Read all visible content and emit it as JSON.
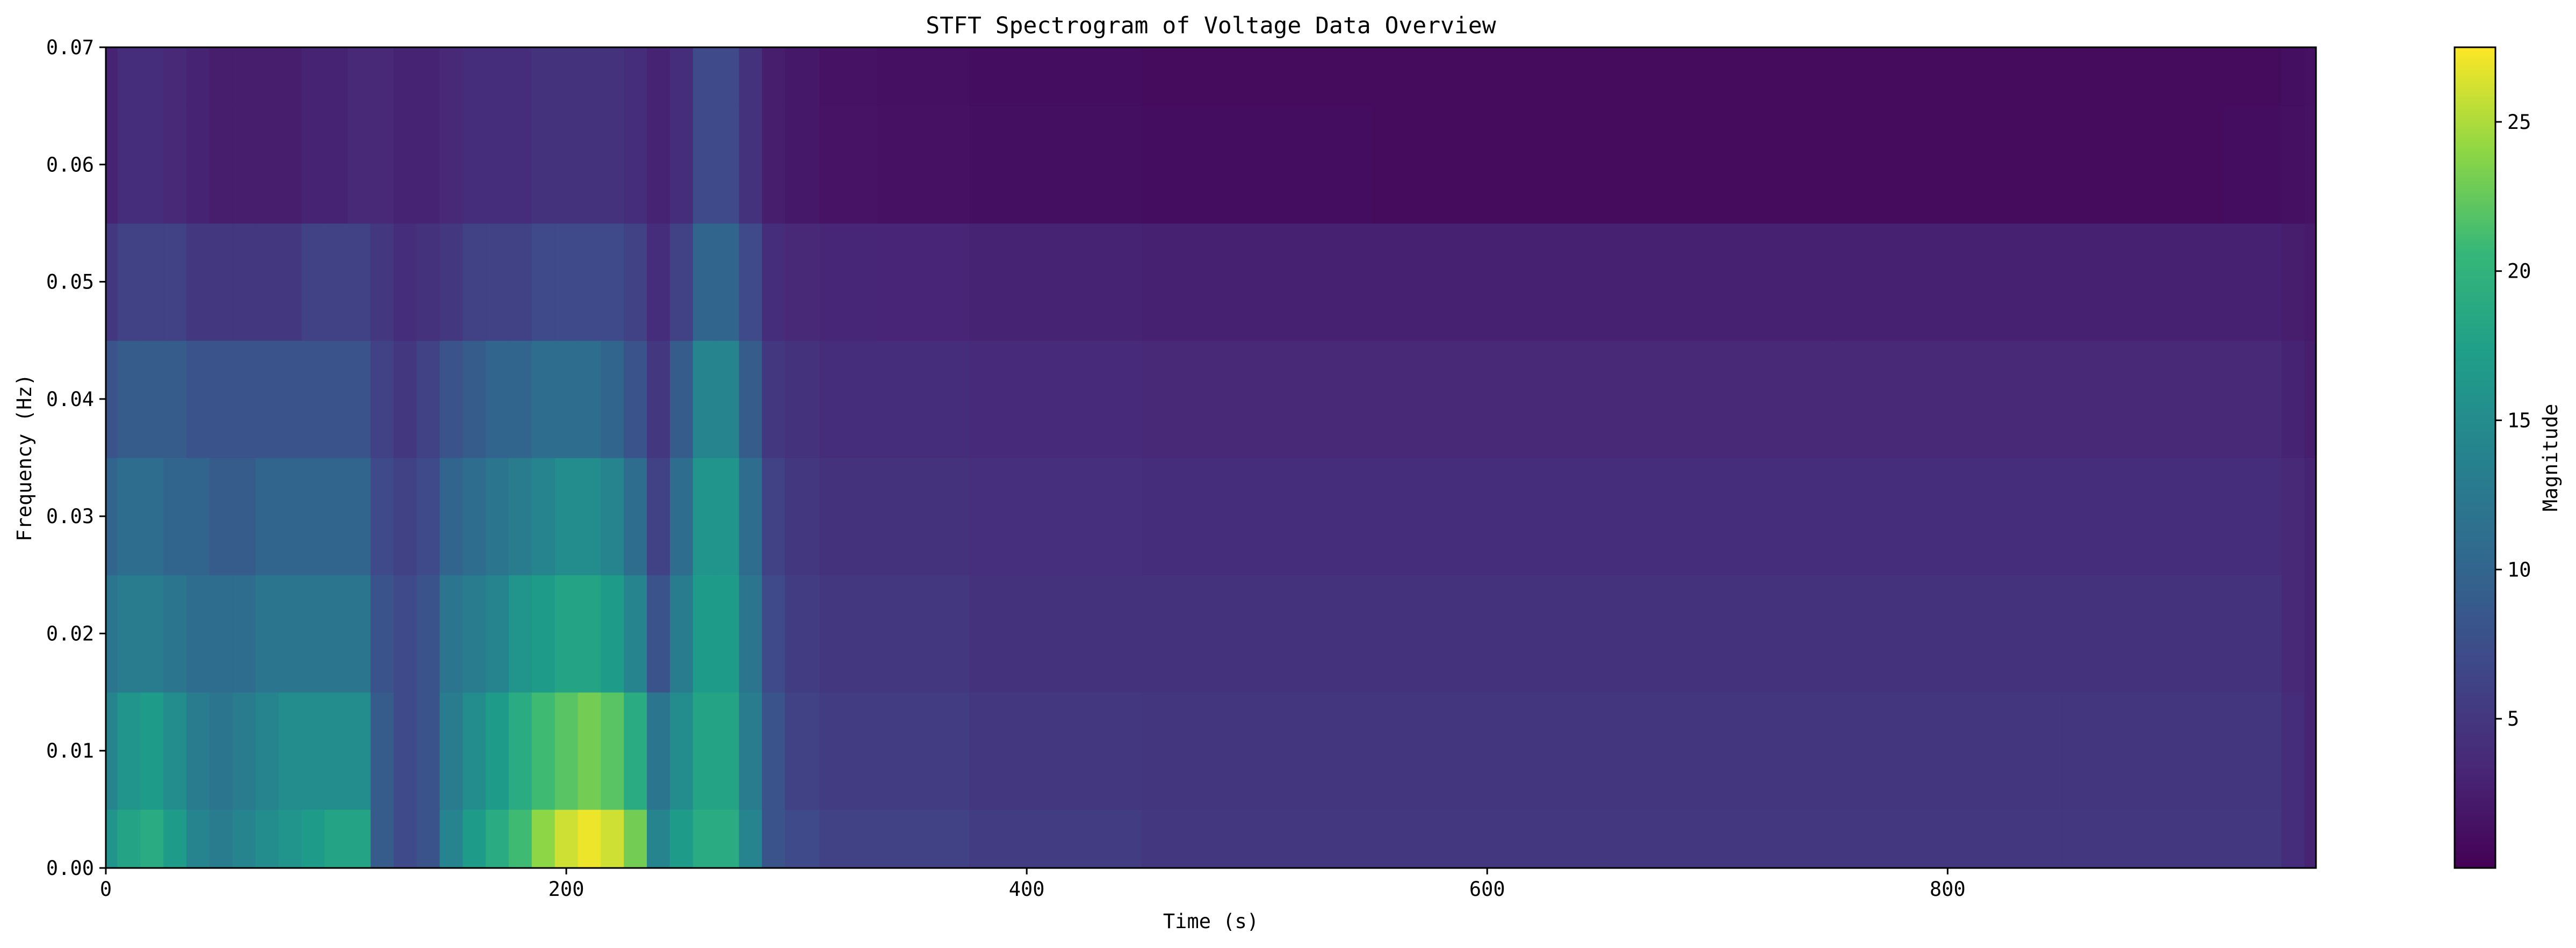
{
  "chart_data": {
    "type": "heatmap",
    "title": "STFT Spectrogram of Voltage Data Overview",
    "xlabel": "Time (s)",
    "ylabel": "Frequency (Hz)",
    "colorbar_label": "Magnitude",
    "colormap": "viridis",
    "xlim": [
      0,
      960
    ],
    "ylim": [
      0,
      0.07
    ],
    "clim": [
      0,
      27.5
    ],
    "x_ticks": [
      0,
      200,
      400,
      600,
      800
    ],
    "x_tick_labels": [
      "0",
      "200",
      "400",
      "600",
      "800"
    ],
    "y_ticks": [
      0.0,
      0.01,
      0.02,
      0.03,
      0.04,
      0.05,
      0.06,
      0.07
    ],
    "y_tick_labels": [
      "0.00",
      "0.01",
      "0.02",
      "0.03",
      "0.04",
      "0.05",
      "0.06",
      "0.07"
    ],
    "colorbar_ticks": [
      5,
      10,
      15,
      20,
      25
    ],
    "colorbar_tick_labels": [
      "5",
      "10",
      "15",
      "20",
      "25"
    ],
    "time_bins": [
      0,
      10,
      20,
      30,
      40,
      50,
      60,
      70,
      80,
      90,
      100,
      110,
      120,
      130,
      140,
      150,
      160,
      170,
      180,
      190,
      200,
      210,
      220,
      230,
      240,
      250,
      260,
      270,
      280,
      290,
      300,
      320,
      350,
      400,
      500,
      600,
      700,
      800,
      900,
      940,
      950,
      960
    ],
    "frequency_bins": [
      0.0,
      0.01,
      0.02,
      0.03,
      0.04,
      0.05,
      0.06,
      0.07
    ],
    "magnitude": [
      [
        16,
        18,
        19,
        17,
        14,
        13,
        14,
        15,
        16,
        17,
        18,
        18,
        9,
        7,
        8,
        14,
        17,
        19,
        21,
        24,
        26,
        27,
        26,
        23,
        14,
        17,
        19,
        19,
        14,
        8,
        7,
        6,
        6,
        5.5,
        5,
        5,
        5,
        5,
        5,
        5,
        4,
        3
      ],
      [
        14,
        16,
        17,
        15,
        13,
        12,
        13,
        14,
        15,
        15,
        15,
        15,
        9,
        7,
        8,
        13,
        15,
        17,
        19,
        21,
        22,
        23,
        22,
        19,
        12,
        15,
        18,
        18,
        13,
        8,
        6,
        5.5,
        5.5,
        5,
        4.8,
        4.8,
        4.8,
        4.8,
        4.8,
        4.8,
        4,
        3
      ],
      [
        12,
        13,
        13,
        12,
        11,
        11,
        11,
        12,
        12,
        12,
        12,
        12,
        8,
        7,
        8,
        12,
        13,
        14,
        16,
        17,
        18,
        18,
        17,
        14,
        8,
        13,
        17,
        17,
        12,
        7,
        5.5,
        5,
        5,
        4.5,
        4.5,
        4.5,
        4.5,
        4.5,
        4.5,
        4.5,
        3.5,
        3
      ],
      [
        10,
        11,
        11,
        10,
        10,
        9,
        9,
        10,
        10,
        10,
        10,
        10,
        7,
        6,
        7,
        10,
        11,
        12,
        13,
        14,
        15,
        15,
        14,
        11,
        6,
        11,
        16,
        16,
        11,
        6,
        5,
        4.5,
        4.5,
        4.2,
        4,
        4,
        4,
        4,
        4,
        4,
        3.5,
        3
      ],
      [
        8,
        9,
        9,
        9,
        8,
        8,
        8,
        8,
        8,
        8,
        8,
        8,
        6,
        5,
        6,
        8,
        9,
        10,
        10,
        11,
        11,
        11,
        10,
        8,
        5,
        9,
        14,
        14,
        9,
        5,
        4.5,
        4,
        4,
        3.8,
        3.5,
        3.5,
        3.5,
        3.5,
        3.5,
        3.5,
        3,
        2.5
      ],
      [
        5,
        6,
        6,
        6,
        5,
        5,
        5,
        5,
        5,
        6,
        6,
        6,
        5,
        4,
        4.5,
        5,
        6,
        6,
        6,
        7,
        7,
        7,
        7,
        6,
        4,
        6,
        10,
        10,
        7,
        4,
        3.5,
        3.3,
        3.2,
        3,
        2.8,
        2.8,
        2.8,
        2.8,
        2.8,
        2.8,
        2.5,
        2.2
      ],
      [
        3,
        4,
        4,
        3.5,
        3,
        2.5,
        2.5,
        2.5,
        2.5,
        3,
        3,
        3.5,
        3.5,
        3,
        3,
        3.5,
        4,
        4,
        4,
        4.5,
        4.5,
        4.5,
        4.5,
        4,
        3,
        4,
        7,
        7,
        4.5,
        2.5,
        2,
        1.6,
        1.4,
        1.2,
        1.1,
        1,
        1,
        1,
        1,
        1.1,
        1.3,
        1.5
      ],
      [
        3,
        4,
        4,
        3.5,
        3,
        2.5,
        2.5,
        2.5,
        2.5,
        3,
        3,
        3.5,
        3.5,
        3,
        3,
        3.5,
        4,
        4,
        4,
        4.5,
        4.5,
        4.5,
        4.5,
        4,
        3,
        4,
        7,
        7,
        4.5,
        2.5,
        2,
        1.5,
        1.3,
        1.1,
        1,
        1,
        1,
        1,
        1,
        1,
        1.2,
        1.4
      ]
    ]
  }
}
